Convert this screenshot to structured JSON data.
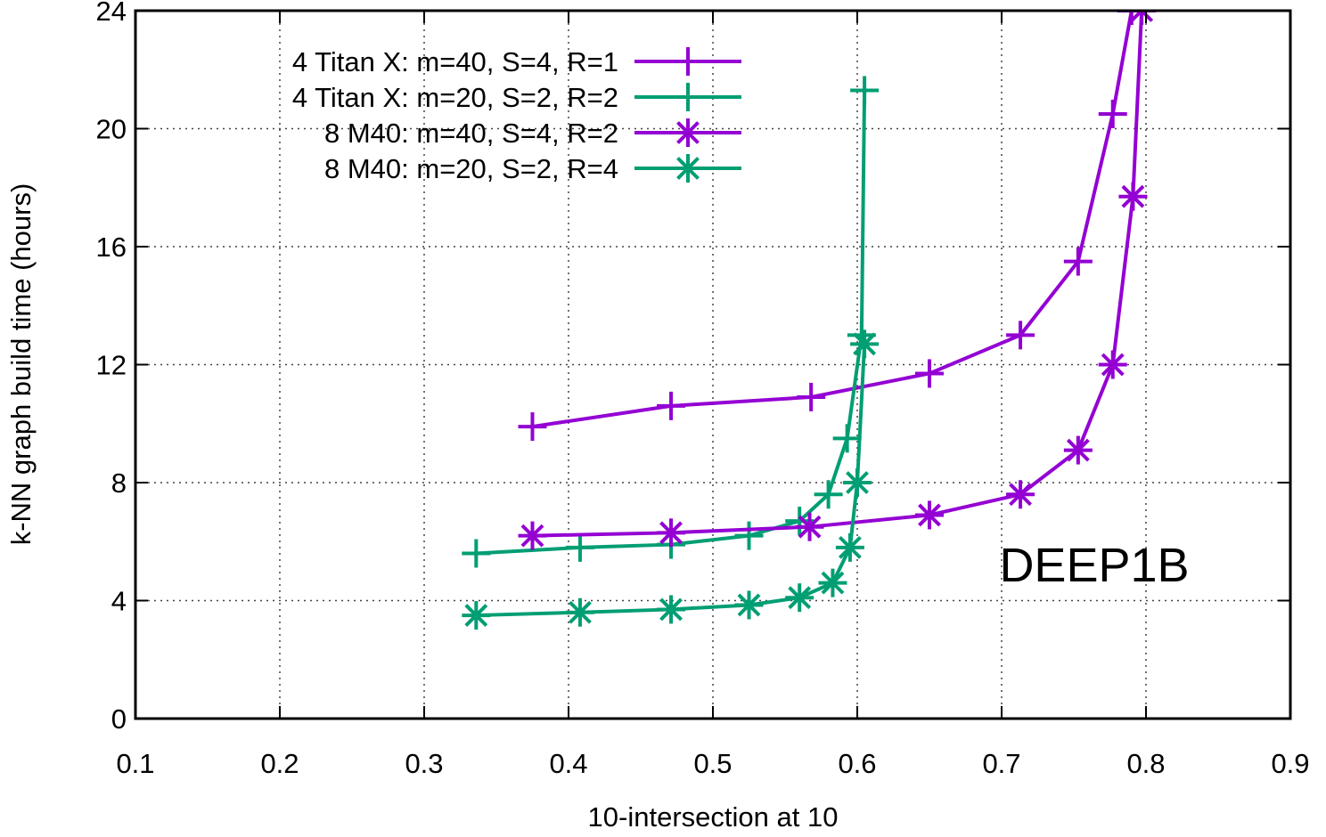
{
  "chart_data": {
    "type": "line",
    "title": "",
    "xlabel": "10-intersection at 10",
    "ylabel": "k-NN graph build time (hours)",
    "xlim": [
      0.1,
      0.9
    ],
    "ylim": [
      0,
      24
    ],
    "xticks": [
      0.1,
      0.2,
      0.3,
      0.4,
      0.5,
      0.6,
      0.7,
      0.8,
      0.9
    ],
    "yticks": [
      0,
      4,
      8,
      12,
      16,
      20,
      24
    ],
    "xtick_labels": [
      "0.1",
      "0.2",
      "0.3",
      "0.4",
      "0.5",
      "0.6",
      "0.7",
      "0.8",
      "0.9"
    ],
    "ytick_labels": [
      "0",
      "4",
      "8",
      "12",
      "16",
      "20",
      "24"
    ],
    "grid": true,
    "legend_position": "top-left",
    "annotation": "DEEP1B",
    "series": [
      {
        "name": "4 Titan X: m=40, S=4, R=1",
        "color": "#9400d3",
        "marker": "plus",
        "x": [
          0.375,
          0.471,
          0.568,
          0.65,
          0.713,
          0.753,
          0.777,
          0.79,
          0.797
        ],
        "y": [
          9.9,
          10.6,
          10.9,
          11.7,
          13.0,
          15.5,
          20.5,
          24.0,
          26.0
        ]
      },
      {
        "name": "4 Titan X: m=20, S=2, R=2",
        "color": "#009e73",
        "marker": "plus",
        "x": [
          0.336,
          0.408,
          0.471,
          0.525,
          0.56,
          0.58,
          0.593,
          0.603,
          0.605
        ],
        "y": [
          5.6,
          5.8,
          5.9,
          6.2,
          6.7,
          7.6,
          9.5,
          13.0,
          21.3
        ]
      },
      {
        "name": "8 M40: m=40, S=4, R=2",
        "color": "#9400d3",
        "marker": "star",
        "x": [
          0.375,
          0.471,
          0.567,
          0.65,
          0.713,
          0.753,
          0.777,
          0.791,
          0.797
        ],
        "y": [
          6.2,
          6.3,
          6.5,
          6.9,
          7.6,
          9.1,
          12.0,
          17.7,
          24.0
        ]
      },
      {
        "name": "8 M40: m=20, S=2, R=4",
        "color": "#009e73",
        "marker": "star",
        "x": [
          0.336,
          0.408,
          0.471,
          0.525,
          0.56,
          0.583,
          0.595,
          0.6,
          0.605
        ],
        "y": [
          3.5,
          3.6,
          3.7,
          3.85,
          4.1,
          4.6,
          5.8,
          8.0,
          12.7
        ]
      }
    ]
  }
}
